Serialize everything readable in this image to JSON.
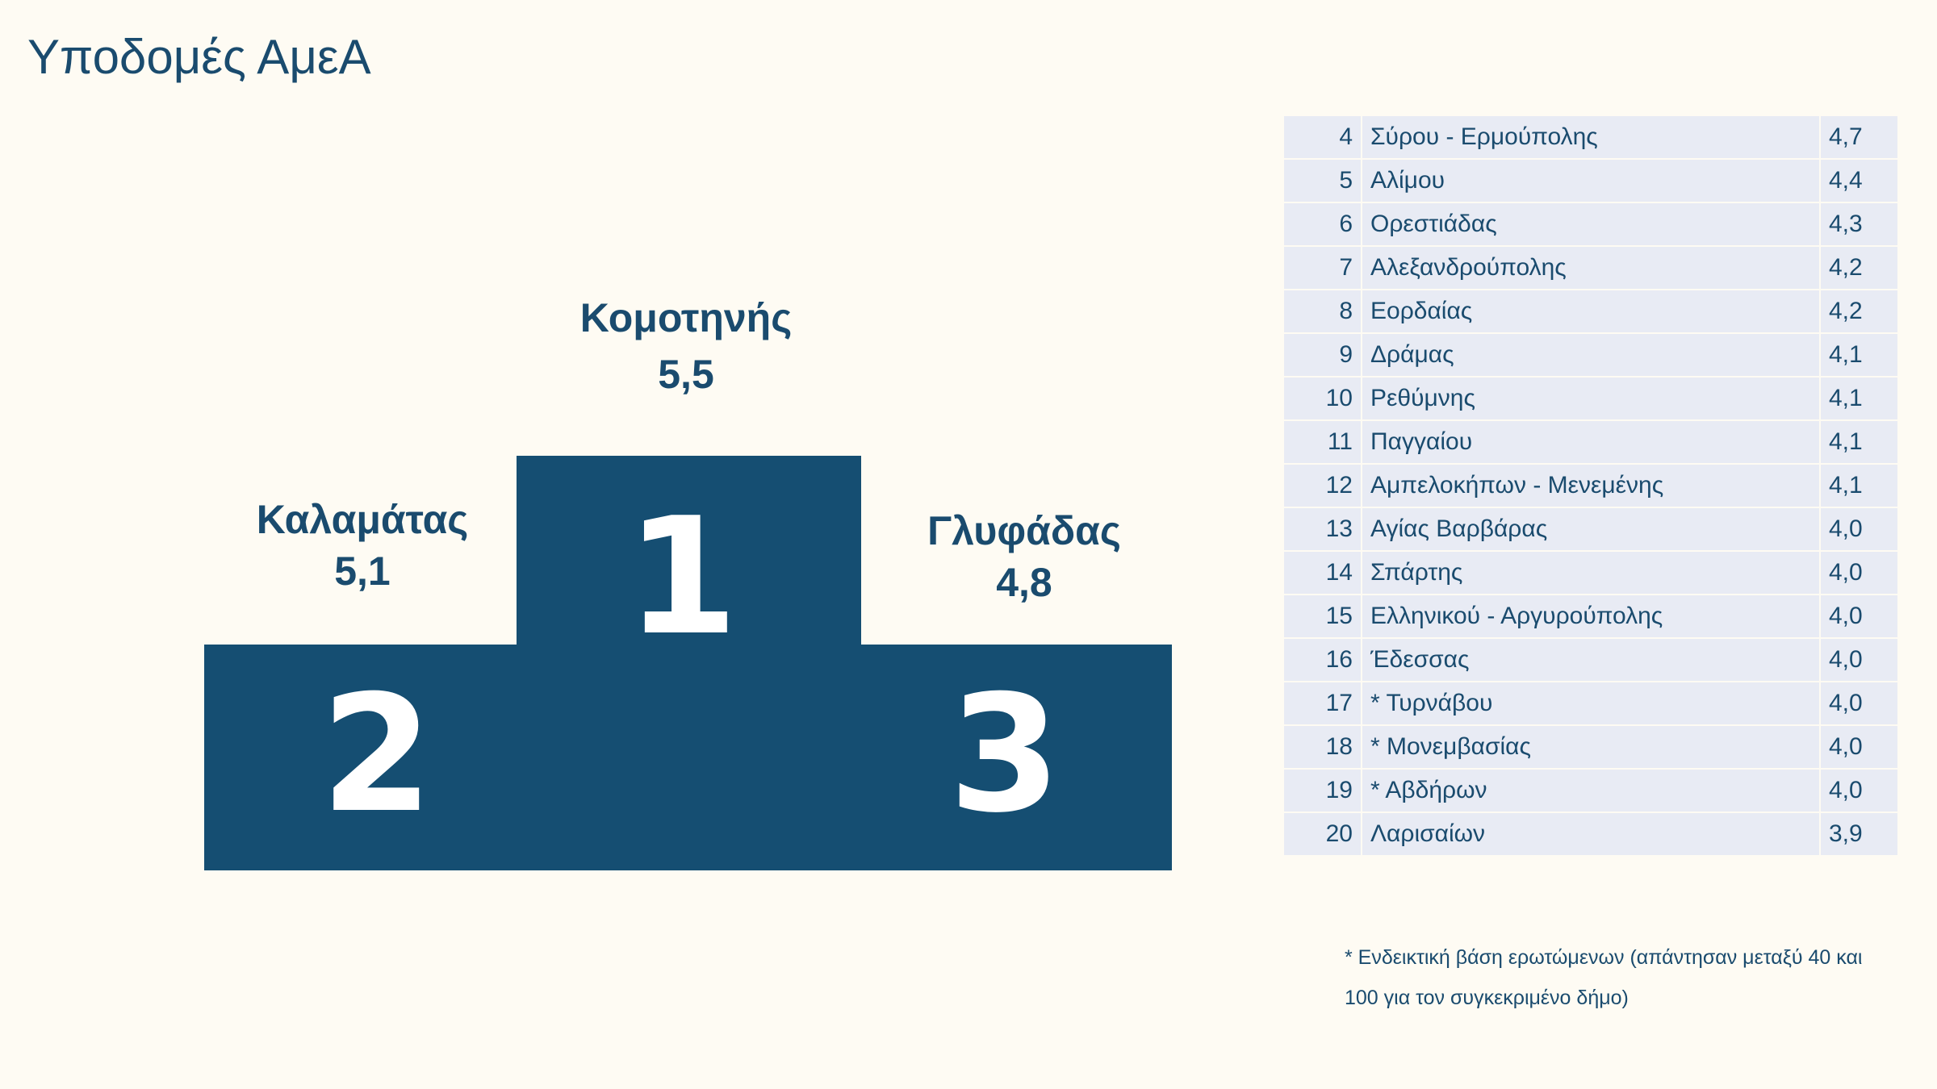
{
  "title": "Υποδομές ΑμεΑ",
  "colors": {
    "primary": "#154e72",
    "background": "#fefbf3",
    "row": "#e8ebf4"
  },
  "podium": {
    "first": {
      "place": "1",
      "name": "Κομοτηνής",
      "value": "5,5"
    },
    "second": {
      "place": "2",
      "name": "Καλαμάτας",
      "value": "5,1"
    },
    "third": {
      "place": "3",
      "name": "Γλυφάδας",
      "value": "4,8"
    }
  },
  "ranking": [
    {
      "rank": "4",
      "name": "Σύρου - Ερμούπολης",
      "value": "4,7"
    },
    {
      "rank": "5",
      "name": "Αλίμου",
      "value": "4,4"
    },
    {
      "rank": "6",
      "name": "Ορεστιάδας",
      "value": "4,3"
    },
    {
      "rank": "7",
      "name": "Αλεξανδρούπολης",
      "value": "4,2"
    },
    {
      "rank": "8",
      "name": "Εορδαίας",
      "value": "4,2"
    },
    {
      "rank": "9",
      "name": "Δράμας",
      "value": "4,1"
    },
    {
      "rank": "10",
      "name": "Ρεθύμνης",
      "value": "4,1"
    },
    {
      "rank": "11",
      "name": "Παγγαίου",
      "value": "4,1"
    },
    {
      "rank": "12",
      "name": "Αμπελοκήπων - Μενεμένης",
      "value": "4,1"
    },
    {
      "rank": "13",
      "name": "Αγίας Βαρβάρας",
      "value": "4,0"
    },
    {
      "rank": "14",
      "name": "Σπάρτης",
      "value": "4,0"
    },
    {
      "rank": "15",
      "name": "Ελληνικού - Αργυρούπολης",
      "value": "4,0"
    },
    {
      "rank": "16",
      "name": "Έδεσσας",
      "value": "4,0"
    },
    {
      "rank": "17",
      "name": "* Τυρνάβου",
      "value": "4,0"
    },
    {
      "rank": "18",
      "name": "* Μονεμβασίας",
      "value": "4,0"
    },
    {
      "rank": "19",
      "name": "* Αβδήρων",
      "value": "4,0"
    },
    {
      "rank": "20",
      "name": "Λαρισαίων",
      "value": "3,9"
    }
  ],
  "footnote": "* Ενδεικτική βάση ερωτώμενων (απάντησαν μεταξύ 40 και 100 για τον συγκεκριμένο δήμο)"
}
